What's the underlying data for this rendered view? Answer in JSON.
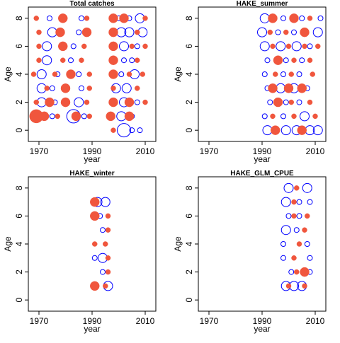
{
  "colors": {
    "positive": "#f0563d",
    "negative": "#0000ff",
    "axis": "#000000",
    "background": "#ffffff"
  },
  "chart_data": [
    {
      "type": "scatter",
      "subtype": "bubble",
      "title": "Total catches",
      "xlabel": "year",
      "ylabel": "Age",
      "xlim": [
        1966,
        2014
      ],
      "ylim": [
        -0.8,
        8.8
      ],
      "xticks": [
        1970,
        1990,
        2010
      ],
      "yticks": [
        0,
        2,
        4,
        6,
        8
      ],
      "series": [
        {
          "sign": "negative",
          "points": [
            [
              1970,
              1,
              2
            ],
            [
              1975,
              1,
              1
            ],
            [
              1983,
              1,
              3
            ],
            [
              1987,
              1,
              1
            ],
            [
              1971,
              2,
              2
            ],
            [
              1976,
              2,
              1
            ],
            [
              1985,
              2,
              2
            ],
            [
              1971,
              3,
              2
            ],
            [
              1975,
              3,
              1
            ],
            [
              1986,
              3,
              1
            ],
            [
              1971,
              4,
              2
            ],
            [
              1977,
              4,
              1
            ],
            [
              1985,
              4,
              1
            ],
            [
              1973,
              5,
              2
            ],
            [
              1982,
              5,
              1
            ],
            [
              1973,
              6,
              2
            ],
            [
              1983,
              6,
              1
            ],
            [
              1975,
              7,
              2
            ],
            [
              1985,
              7,
              1
            ],
            [
              1974,
              8,
              1
            ],
            [
              1986,
              8,
              1
            ],
            [
              2002,
              0,
              3
            ],
            [
              2005,
              0,
              1
            ],
            [
              2008,
              0,
              1
            ],
            [
              2001,
              1,
              2
            ],
            [
              2005,
              1,
              1
            ],
            [
              2002,
              2,
              2
            ],
            [
              2007,
              2,
              1
            ],
            [
              1999,
              3,
              2
            ],
            [
              2003,
              3,
              2
            ],
            [
              2001,
              4,
              1
            ],
            [
              2006,
              4,
              2
            ],
            [
              2002,
              5,
              1
            ],
            [
              2005,
              5,
              1
            ],
            [
              2002,
              6,
              2
            ],
            [
              2007,
              6,
              1
            ],
            [
              2001,
              7,
              2
            ],
            [
              2004,
              7,
              2
            ],
            [
              2009,
              7,
              2
            ],
            [
              2000,
              8,
              1
            ],
            [
              2004,
              8,
              1
            ],
            [
              2008,
              8,
              2
            ]
          ]
        },
        {
          "sign": "positive",
          "points": [
            [
              1969,
              1,
              3
            ],
            [
              1972,
              1,
              2
            ],
            [
              1977,
              1,
              1
            ],
            [
              1984,
              1,
              2
            ],
            [
              1989,
              1,
              1
            ],
            [
              1969,
              2,
              1
            ],
            [
              1974,
              2,
              2
            ],
            [
              1980,
              2,
              2
            ],
            [
              1988,
              2,
              1
            ],
            [
              1973,
              3,
              1
            ],
            [
              1980,
              3,
              2
            ],
            [
              1989,
              3,
              1
            ],
            [
              1968,
              4,
              1
            ],
            [
              1976,
              4,
              1
            ],
            [
              1982,
              4,
              2
            ],
            [
              1989,
              4,
              1
            ],
            [
              1970,
              5,
              1
            ],
            [
              1979,
              5,
              1
            ],
            [
              1986,
              5,
              1
            ],
            [
              1970,
              6,
              1
            ],
            [
              1979,
              6,
              2
            ],
            [
              1987,
              6,
              1
            ],
            [
              1970,
              7,
              1
            ],
            [
              1978,
              7,
              2
            ],
            [
              1988,
              7,
              2
            ],
            [
              1969,
              8,
              1
            ],
            [
              1979,
              8,
              2
            ],
            [
              1988,
              8,
              1
            ],
            [
              1998,
              0,
              1
            ],
            [
              1997,
              1,
              2
            ],
            [
              2004,
              1,
              2
            ],
            [
              1998,
              2,
              2
            ],
            [
              2004,
              2,
              2
            ],
            [
              2010,
              2,
              1
            ],
            [
              1998,
              3,
              1
            ],
            [
              2007,
              3,
              1
            ],
            [
              1998,
              4,
              2
            ],
            [
              2004,
              4,
              1
            ],
            [
              2009,
              4,
              1
            ],
            [
              1998,
              5,
              2
            ],
            [
              2007,
              5,
              1
            ],
            [
              1998,
              6,
              2
            ],
            [
              2005,
              6,
              1
            ],
            [
              2010,
              6,
              1
            ],
            [
              1998,
              7,
              2
            ],
            [
              2007,
              7,
              1
            ],
            [
              1998,
              8,
              2
            ],
            [
              2002,
              8,
              2
            ],
            [
              2010,
              8,
              1
            ]
          ]
        }
      ]
    },
    {
      "type": "scatter",
      "subtype": "bubble",
      "title": "HAKE_summer",
      "xlabel": "year",
      "ylabel": "Age",
      "xlim": [
        1966,
        2014
      ],
      "ylim": [
        -0.8,
        8.8
      ],
      "xticks": [
        1970,
        1990,
        2010
      ],
      "yticks": [
        0,
        2,
        4,
        6,
        8
      ],
      "series": [
        {
          "sign": "negative",
          "points": [
            [
              1992,
              0,
              2
            ],
            [
              1999,
              0,
              2
            ],
            [
              2003,
              0,
              2
            ],
            [
              2008,
              0,
              2
            ],
            [
              2011,
              0,
              2
            ],
            [
              1991,
              1,
              1
            ],
            [
              1998,
              1,
              1
            ],
            [
              2006,
              1,
              2
            ],
            [
              1993,
              2,
              1
            ],
            [
              1999,
              2,
              1
            ],
            [
              2004,
              2,
              1
            ],
            [
              1992,
              3,
              1
            ],
            [
              1997,
              3,
              2
            ],
            [
              2002,
              3,
              2
            ],
            [
              2007,
              3,
              1
            ],
            [
              1991,
              4,
              1
            ],
            [
              1998,
              4,
              1
            ],
            [
              2004,
              4,
              1
            ],
            [
              1992,
              5,
              1
            ],
            [
              1999,
              5,
              1
            ],
            [
              2005,
              5,
              1
            ],
            [
              1991,
              6,
              2
            ],
            [
              1997,
              6,
              2
            ],
            [
              2003,
              6,
              2
            ],
            [
              2008,
              6,
              1
            ],
            [
              1990,
              7,
              2
            ],
            [
              1996,
              7,
              1
            ],
            [
              2002,
              7,
              1
            ],
            [
              2011,
              7,
              2
            ],
            [
              1991,
              8,
              2
            ],
            [
              1998,
              8,
              1
            ],
            [
              2005,
              8,
              1
            ],
            [
              2012,
              8,
              1
            ]
          ]
        },
        {
          "sign": "positive",
          "points": [
            [
              1995,
              0,
              2
            ],
            [
              2005,
              0,
              2
            ],
            [
              1994,
              1,
              1
            ],
            [
              2002,
              1,
              1
            ],
            [
              2010,
              1,
              1
            ],
            [
              1996,
              2,
              2
            ],
            [
              2001,
              2,
              1
            ],
            [
              2008,
              2,
              1
            ],
            [
              1994,
              3,
              2
            ],
            [
              2000,
              3,
              2
            ],
            [
              2005,
              3,
              2
            ],
            [
              1995,
              4,
              1
            ],
            [
              2001,
              4,
              1
            ],
            [
              2009,
              4,
              1
            ],
            [
              1996,
              5,
              2
            ],
            [
              2002,
              5,
              1
            ],
            [
              2008,
              5,
              1
            ],
            [
              1994,
              6,
              1
            ],
            [
              2000,
              6,
              1
            ],
            [
              2006,
              6,
              1
            ],
            [
              2011,
              6,
              1
            ],
            [
              1993,
              7,
              1
            ],
            [
              1999,
              7,
              1
            ],
            [
              2006,
              7,
              2
            ],
            [
              1994,
              8,
              2
            ],
            [
              2002,
              8,
              2
            ],
            [
              2008,
              8,
              1
            ]
          ]
        }
      ]
    },
    {
      "type": "scatter",
      "subtype": "bubble",
      "title": "HAKE_winter",
      "xlabel": "year",
      "ylabel": "Age",
      "xlim": [
        1966,
        2014
      ],
      "ylim": [
        -0.8,
        8.8
      ],
      "xticks": [
        1970,
        1990,
        2010
      ],
      "yticks": [
        0,
        2,
        4,
        6,
        8
      ],
      "series": [
        {
          "sign": "negative",
          "points": [
            [
              1996,
              1,
              2
            ],
            [
              1994,
              2,
              1
            ],
            [
              1991,
              3,
              1
            ],
            [
              1994,
              3,
              2
            ],
            [
              1994,
              5,
              1
            ],
            [
              1993,
              6,
              1
            ],
            [
              1992,
              7,
              2
            ],
            [
              1995,
              7,
              2
            ]
          ]
        },
        {
          "sign": "positive",
          "points": [
            [
              1991,
              1,
              2
            ],
            [
              1995,
              1,
              1
            ],
            [
              1996,
              2,
              1
            ],
            [
              1996,
              3,
              1
            ],
            [
              1991,
              4,
              1
            ],
            [
              1995,
              4,
              1
            ],
            [
              1996,
              5,
              1
            ],
            [
              1991,
              6,
              2
            ],
            [
              1996,
              6,
              1
            ],
            [
              1991,
              7,
              2
            ]
          ]
        }
      ]
    },
    {
      "type": "scatter",
      "subtype": "bubble",
      "title": "HAKE_GLM_CPUE",
      "xlabel": "year",
      "ylabel": "Age",
      "xlim": [
        1966,
        2014
      ],
      "ylim": [
        -0.8,
        8.8
      ],
      "xticks": [
        1970,
        1990,
        2010
      ],
      "yticks": [
        0,
        2,
        4,
        6,
        8
      ],
      "series": [
        {
          "sign": "negative",
          "points": [
            [
              1999,
              1,
              2
            ],
            [
              2002,
              1,
              2
            ],
            [
              2005,
              1,
              2
            ],
            [
              2001,
              2,
              1
            ],
            [
              2008,
              2,
              1
            ],
            [
              1998,
              3,
              1
            ],
            [
              2008,
              3,
              1
            ],
            [
              1998,
              4,
              1
            ],
            [
              2007,
              4,
              1
            ],
            [
              1999,
              5,
              2
            ],
            [
              2003,
              5,
              1
            ],
            [
              2000,
              6,
              1
            ],
            [
              2004,
              6,
              1
            ],
            [
              1999,
              7,
              2
            ],
            [
              2004,
              7,
              1
            ],
            [
              2008,
              7,
              1
            ],
            [
              2000,
              8,
              2
            ],
            [
              2007,
              8,
              2
            ]
          ]
        },
        {
          "sign": "positive",
          "points": [
            [
              2000,
              1,
              1
            ],
            [
              2006,
              1,
              1
            ],
            [
              2003,
              2,
              1
            ],
            [
              2006,
              2,
              2
            ],
            [
              2002,
              3,
              1
            ],
            [
              2004,
              4,
              1
            ],
            [
              2006,
              5,
              1
            ],
            [
              2002,
              6,
              1
            ],
            [
              2007,
              6,
              1
            ],
            [
              2002,
              7,
              1
            ],
            [
              2003,
              8,
              1
            ]
          ]
        }
      ]
    }
  ]
}
